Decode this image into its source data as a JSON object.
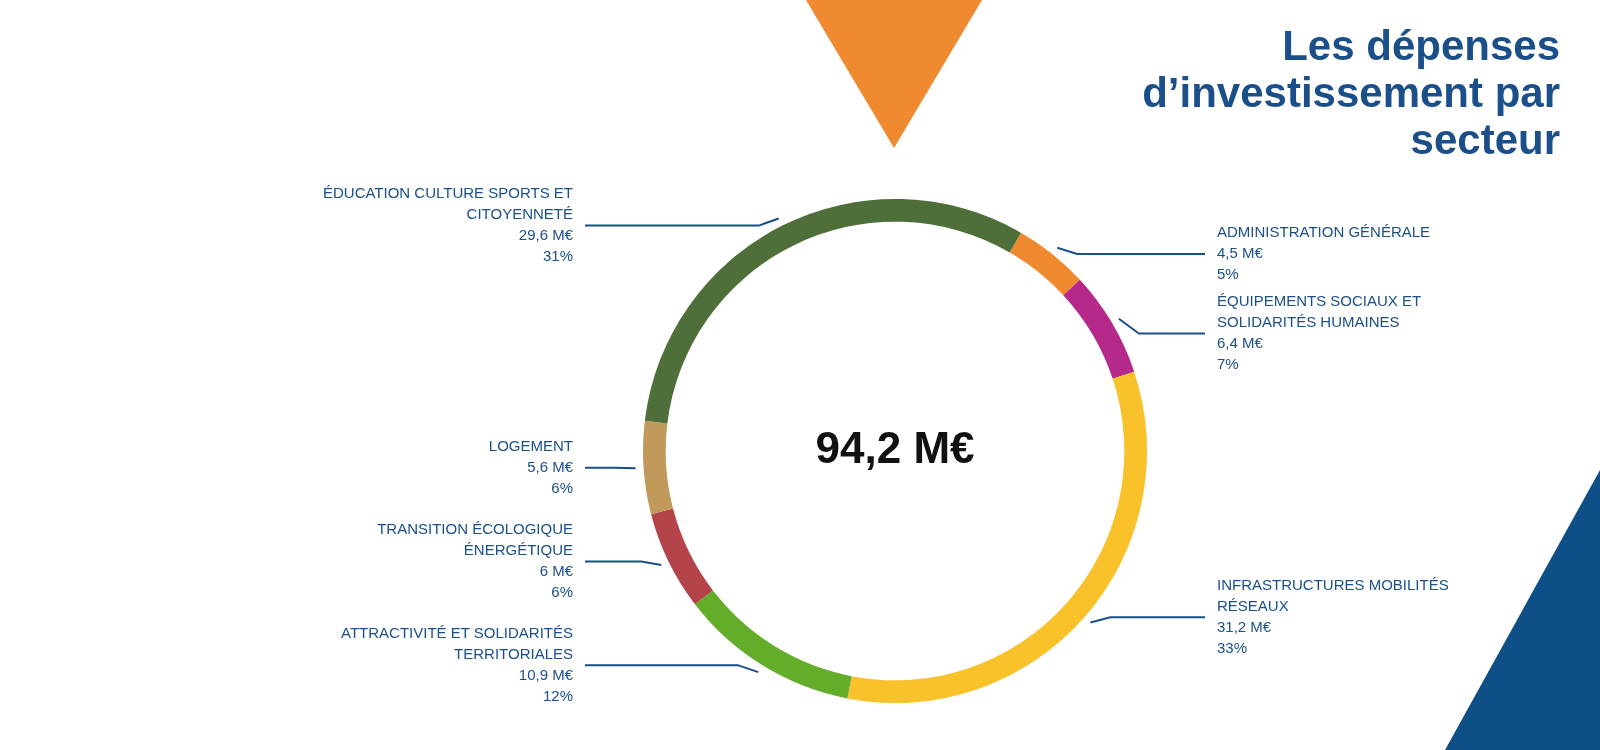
{
  "chart_data": {
    "type": "donut",
    "title": "Les dépenses d’investissement par secteur",
    "categories": [
      "ADMINISTRATION GÉNÉRALE",
      "ÉQUIPEMENTS SOCIAUX ET SOLIDARITÉS HUMAINES",
      "INFRASTRUCTURES MOBILITÉS RÉSEAUX",
      "ATTRACTIVITÉ ET SOLIDARITÉS TERRITORIALES",
      "TRANSITION ÉCOLOGIQUE ÉNERGÉTIQUE",
      "LOGEMENT",
      "ÉDUCATION CULTURE SPORTS ET CITOYENNETÉ"
    ],
    "values": [
      4.5,
      6.4,
      31.2,
      10.9,
      6,
      5.6,
      29.6
    ],
    "colors": [
      "#f08a30",
      "#b5298a",
      "#f9c12a",
      "#64ad2a",
      "#b5444a",
      "#c19a5b",
      "#4f6f3a"
    ],
    "value_labels": [
      "4,5 M€\n5%",
      "6,4 M€\n7%",
      "31,2 M€\n33%",
      "10,9 M€\n12%",
      "6 M€\n6%",
      "5,6 M€\n6%",
      "29,6 M€\n31%"
    ],
    "annotations": [
      "94,2 M€"
    ]
  }
}
